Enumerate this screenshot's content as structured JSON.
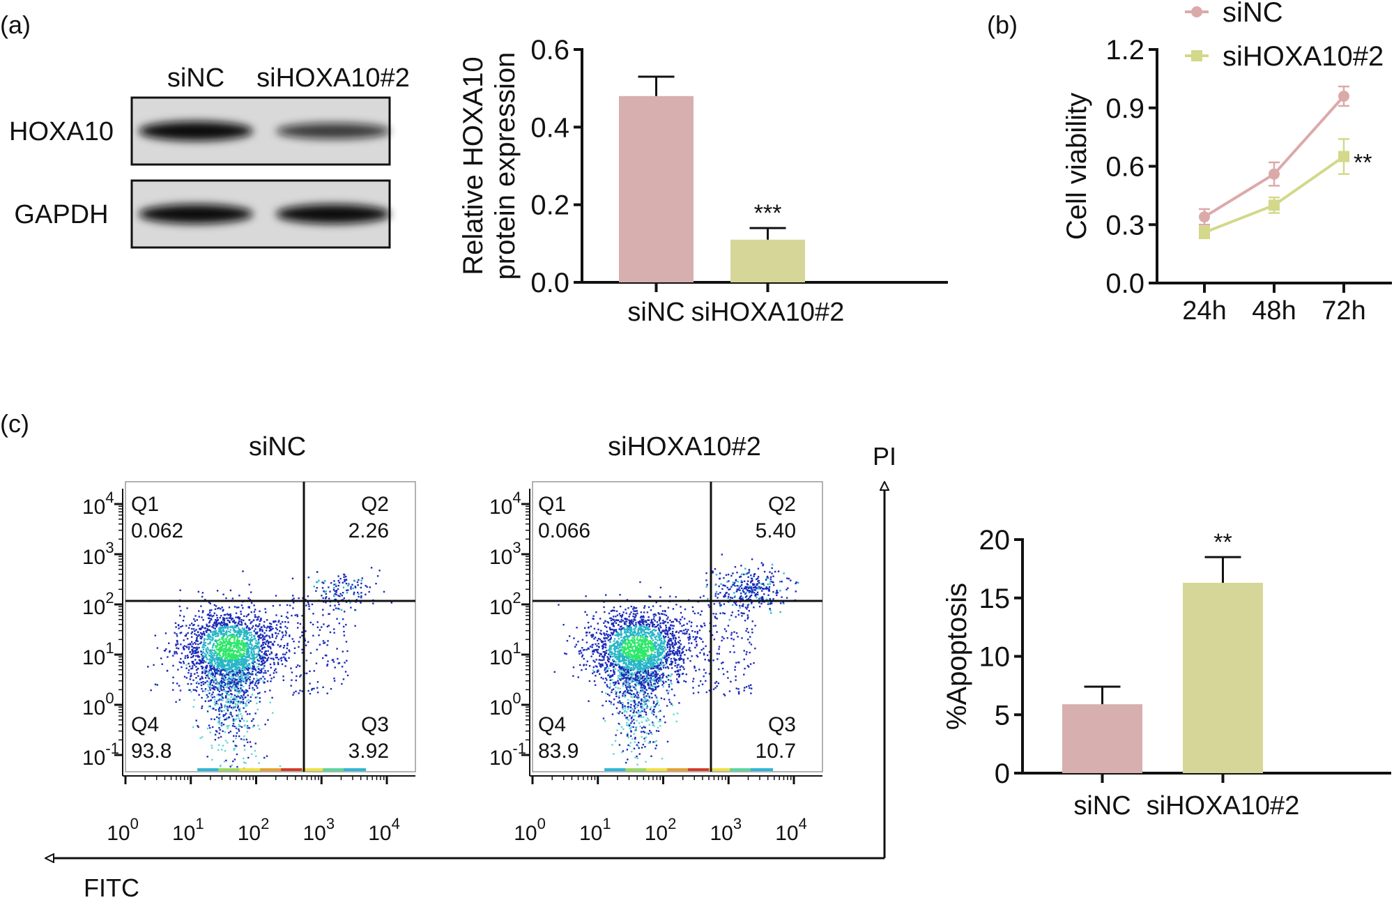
{
  "panel_labels": {
    "a": "(a)",
    "b": "(b)",
    "c": "(c)"
  },
  "western_blot": {
    "lanes": [
      "siNC",
      "siHOXA10#2"
    ],
    "rows": [
      "HOXA10",
      "GAPDH"
    ]
  },
  "colors": {
    "siNC": "#d6afae",
    "siHOXA10#2": "#d6d699",
    "siNC_line": "#dca9a9",
    "siHOXA10#2_line": "#d3d88a"
  },
  "chart_data": [
    {
      "type": "bar",
      "categories": [
        "siNC",
        "siHOXA10#2"
      ],
      "values": [
        0.48,
        0.11
      ],
      "errors": [
        0.05,
        0.03
      ],
      "annotations": [
        "",
        "***"
      ],
      "ylabel": [
        "Relative HOXA10",
        "protein expression"
      ],
      "ylim": [
        0,
        0.6
      ],
      "yticks": [
        "0.0",
        "0.2",
        "0.4",
        "0.6"
      ],
      "grid": false
    },
    {
      "type": "line",
      "categories": [
        "24h",
        "48h",
        "72h"
      ],
      "series": [
        {
          "name": "siNC",
          "values": [
            0.34,
            0.56,
            0.96
          ],
          "errors": [
            0.04,
            0.06,
            0.05
          ],
          "marker": "circle"
        },
        {
          "name": "siHOXA10#2",
          "values": [
            0.26,
            0.4,
            0.65
          ],
          "errors": [
            0.03,
            0.04,
            0.09
          ],
          "marker": "square"
        }
      ],
      "annotation": "**",
      "ylabel": "Cell viability",
      "ylim": [
        0,
        1.2
      ],
      "yticks": [
        "0.0",
        "0.3",
        "0.6",
        "0.9",
        "1.2"
      ],
      "legend": "top-right",
      "grid": false
    },
    {
      "type": "scatter",
      "title": "siNC",
      "quadrants": {
        "Q1": "0.062",
        "Q2": "2.26",
        "Q3": "3.92",
        "Q4": "93.8"
      },
      "x_scale": "log",
      "y_scale": "log",
      "xticks_exp": [
        "0",
        "1",
        "2",
        "3",
        "4"
      ],
      "yticks_exp": [
        "-1",
        "0",
        "1",
        "2",
        "3",
        "4"
      ],
      "tick_base": "10"
    },
    {
      "type": "scatter",
      "title": "siHOXA10#2",
      "quadrants": {
        "Q1": "0.066",
        "Q2": "5.40",
        "Q3": "10.7",
        "Q4": "83.9"
      },
      "x_scale": "log",
      "y_scale": "log",
      "xticks_exp": [
        "0",
        "1",
        "2",
        "3",
        "4"
      ],
      "yticks_exp": [
        "-1",
        "0",
        "1",
        "2",
        "3",
        "4"
      ],
      "tick_base": "10"
    },
    {
      "type": "bar",
      "categories": [
        "siNC",
        "siHOXA10#2"
      ],
      "values": [
        5.9,
        16.3
      ],
      "errors": [
        1.5,
        2.2
      ],
      "annotations": [
        "",
        "**"
      ],
      "ylabel": "%Apoptosis",
      "ylim": [
        0,
        20
      ],
      "yticks": [
        "0",
        "5",
        "10",
        "15",
        "20"
      ],
      "grid": false
    }
  ],
  "flow_axes": {
    "x_label": "FITC",
    "y_label": "PI"
  }
}
